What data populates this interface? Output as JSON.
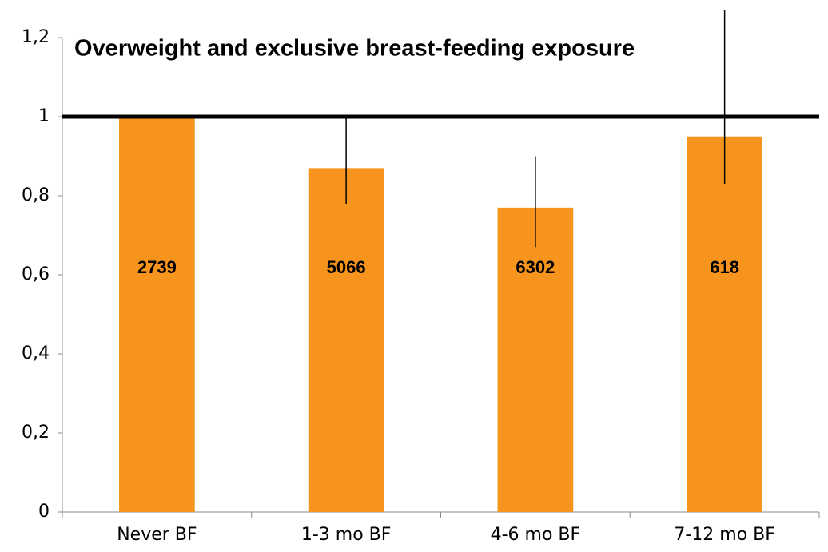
{
  "chart_data": {
    "type": "bar",
    "title": "Overweight and exclusive breast-feeding exposure",
    "categories": [
      "Never BF",
      "1-3 mo BF",
      "4-6 mo BF",
      "7-12 mo BF"
    ],
    "values": [
      1,
      0.87,
      0.77,
      0.95
    ],
    "ci_low": [
      null,
      0.78,
      0.67,
      0.83
    ],
    "ci_high": [
      null,
      1.0,
      0.9,
      1.27
    ],
    "sample_sizes": [
      2739,
      5066,
      6302,
      618
    ],
    "color": "#f7941d",
    "reference_line": 1,
    "ylim": [
      0,
      1.2
    ],
    "yticks": [
      0,
      {
        "value": 0.2,
        "label": "0,2"
      },
      {
        "value": 0.4,
        "label": "0,4"
      },
      {
        "value": 0.6,
        "label": "0,6"
      },
      {
        "value": 0.8,
        "label": "0,8"
      },
      1,
      {
        "value": 1.2,
        "label": "1,2"
      }
    ]
  }
}
